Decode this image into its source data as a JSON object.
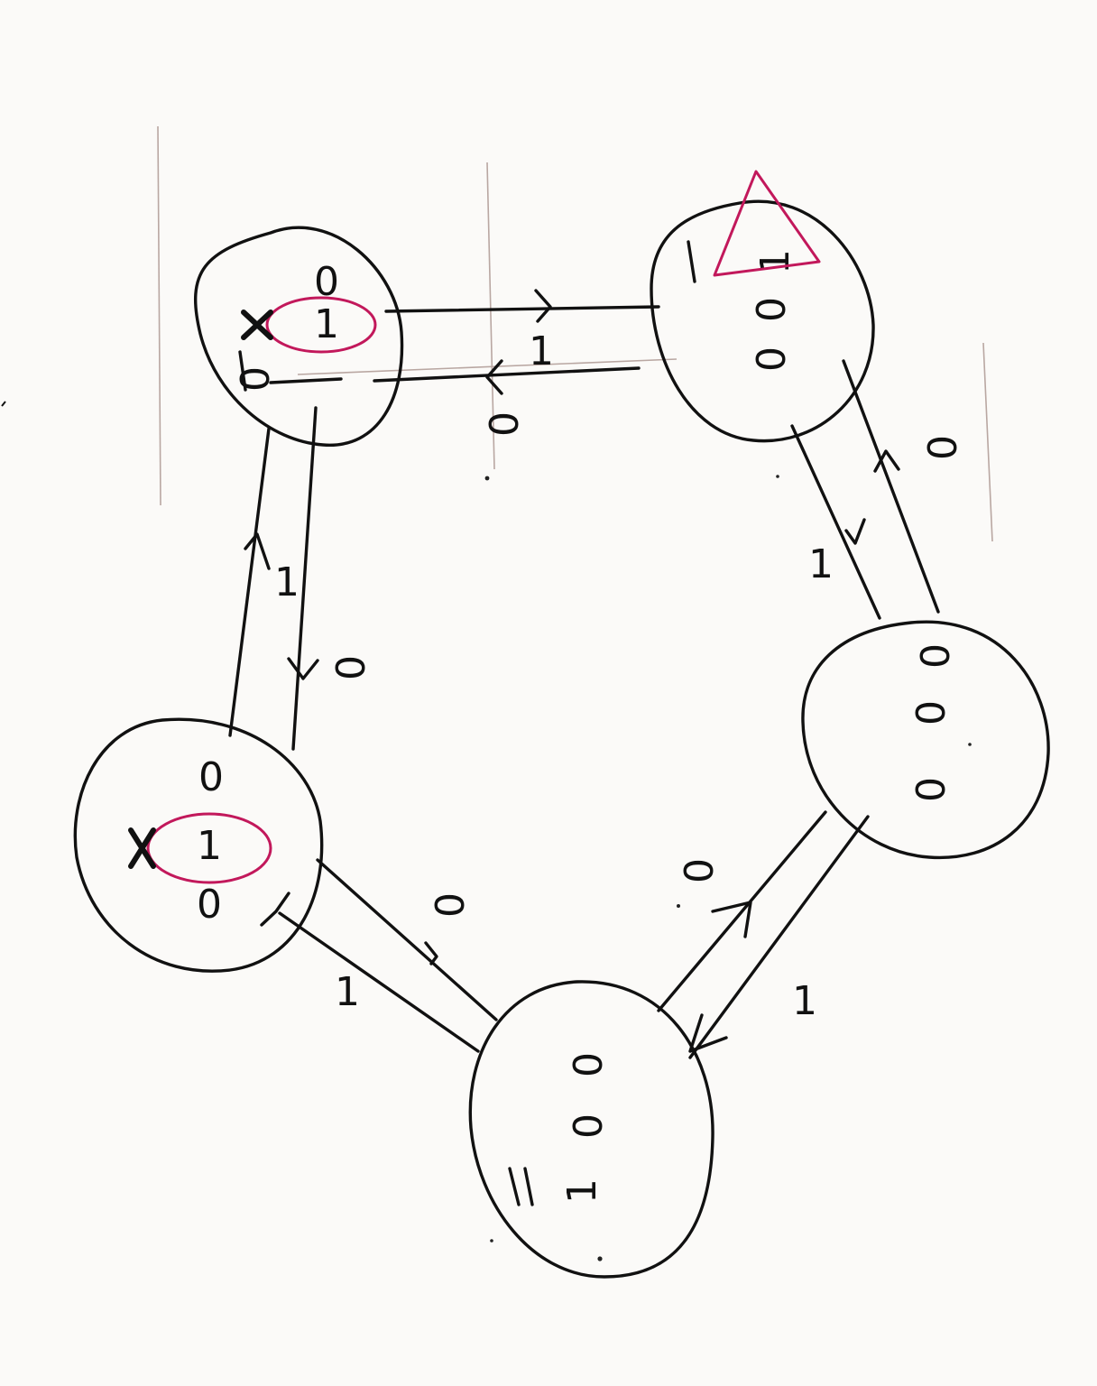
{
  "states": [
    {
      "id": "s1",
      "cells": [
        "0",
        "1",
        "0"
      ],
      "initial": true,
      "ring": 1
    },
    {
      "id": "s2",
      "cells": [
        "1",
        "0",
        "0"
      ],
      "initial": false,
      "mark": 0
    },
    {
      "id": "s3",
      "cells": [
        "0",
        "0",
        "0"
      ],
      "initial": false
    },
    {
      "id": "s4",
      "cells": [
        "0",
        "0",
        "1"
      ],
      "initial": false
    },
    {
      "id": "s5",
      "cells": [
        "0",
        "1",
        "0"
      ],
      "initial": true,
      "ring": 1
    }
  ],
  "transitions": [
    {
      "from": "s1",
      "to": "s2",
      "input": "1"
    },
    {
      "from": "s2",
      "to": "s1",
      "input": "0"
    },
    {
      "from": "s2",
      "to": "s3",
      "input": "1"
    },
    {
      "from": "s3",
      "to": "s2",
      "input": "0"
    },
    {
      "from": "s3",
      "to": "s4",
      "input": "1"
    },
    {
      "from": "s4",
      "to": "s3",
      "input": "0"
    },
    {
      "from": "s4",
      "to": "s5",
      "input": "1"
    },
    {
      "from": "s5",
      "to": "s4",
      "input": "0"
    },
    {
      "from": "s5",
      "to": "s1",
      "input": "1"
    },
    {
      "from": "s1",
      "to": "s5",
      "input": "0"
    }
  ],
  "colors": {
    "ink": "#111111",
    "highlight": "#c2185b",
    "paper": "#fbfaf8"
  }
}
